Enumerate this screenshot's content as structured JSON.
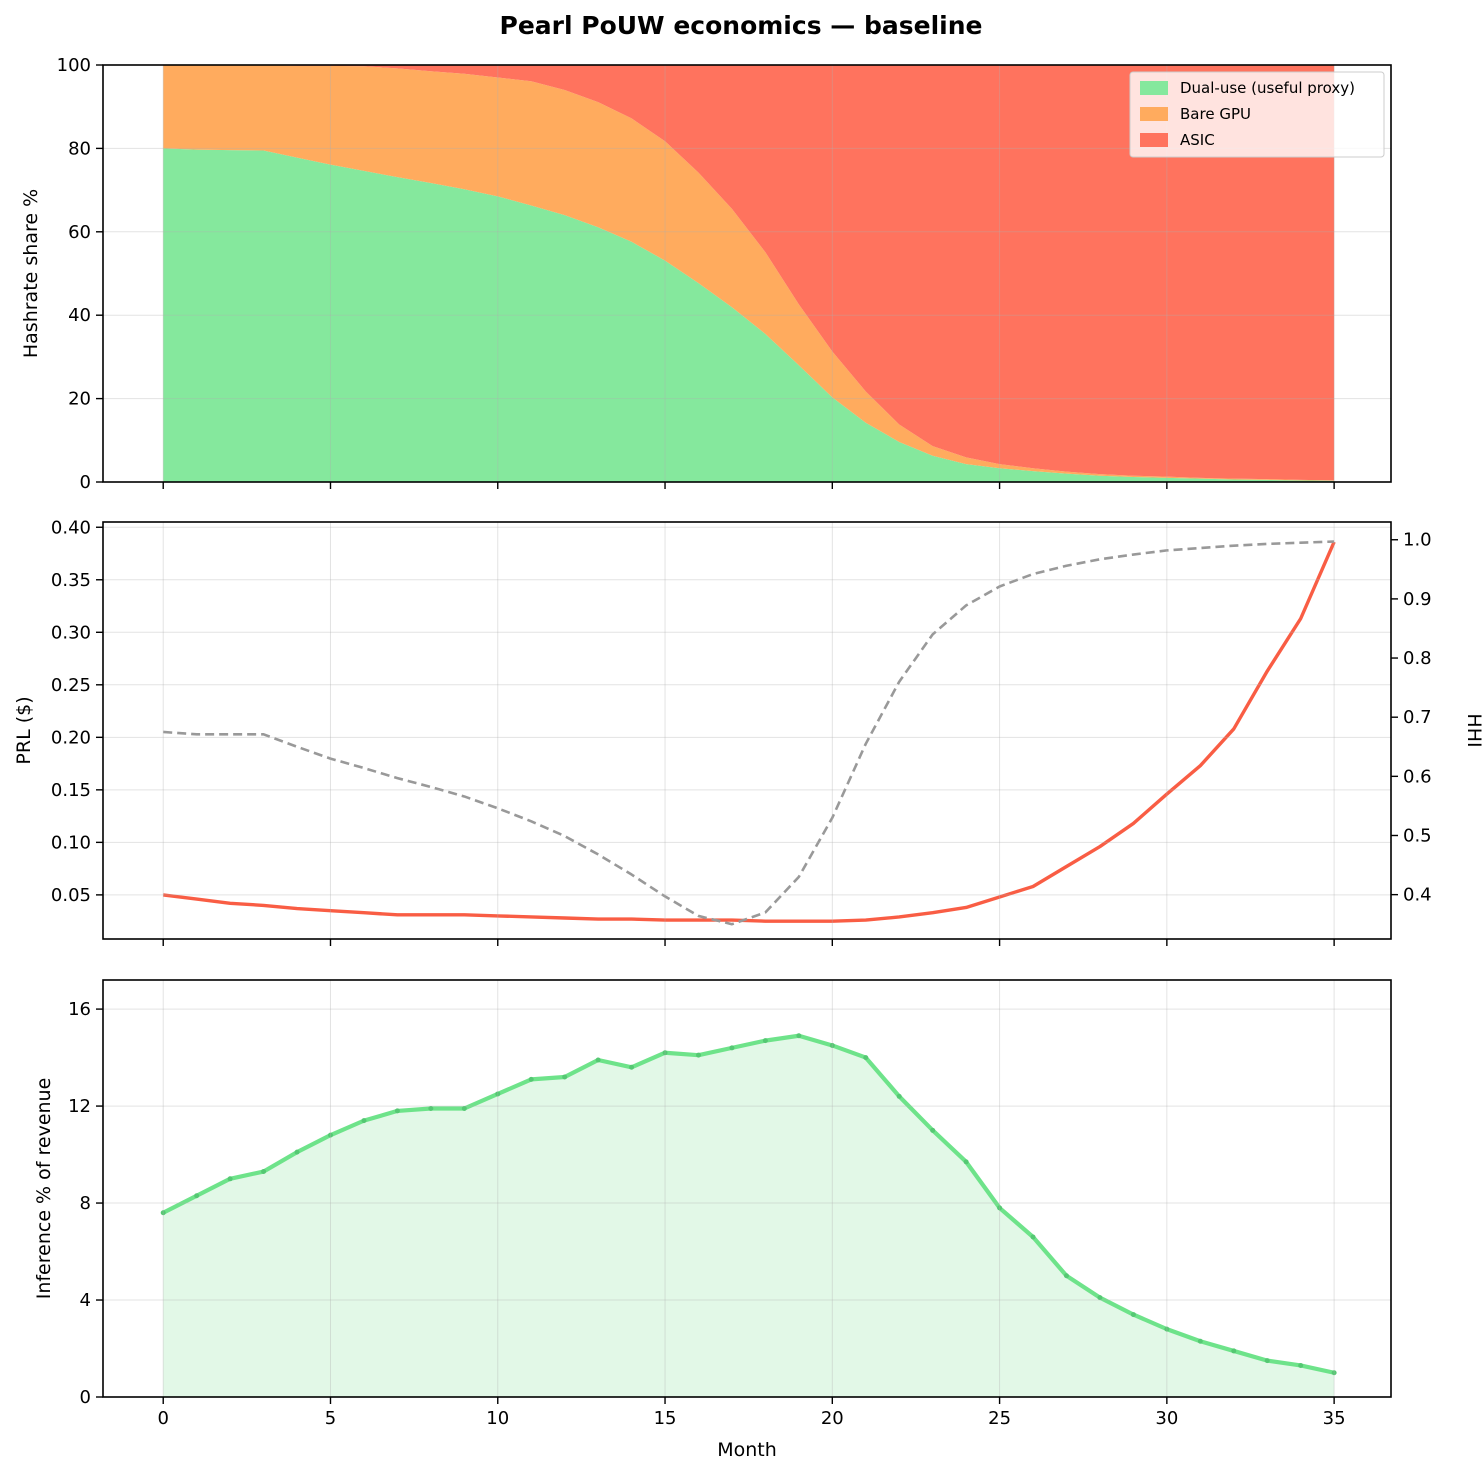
{
  "title": "Pearl PoUW economics — baseline",
  "chart_data": [
    {
      "type": "area",
      "stacked": true,
      "ylabel": "Hashrate share %",
      "xlim": [
        -1.8,
        36.7
      ],
      "ylim": [
        0,
        100
      ],
      "yticks": [
        0,
        20,
        40,
        60,
        80,
        100
      ],
      "xticks": [
        0,
        5,
        10,
        15,
        20,
        25,
        30,
        35
      ],
      "grid": true,
      "legend_position": "top-right",
      "x": [
        0,
        1,
        2,
        3,
        4,
        5,
        6,
        7,
        8,
        9,
        10,
        11,
        12,
        13,
        14,
        15,
        16,
        17,
        18,
        19,
        20,
        21,
        22,
        23,
        24,
        25,
        26,
        27,
        28,
        29,
        30,
        31,
        32,
        33,
        34,
        35
      ],
      "series": [
        {
          "name": "Dual-use (useful proxy)",
          "color": "#85e89d",
          "values": [
            80,
            79.7,
            79.6,
            79.5,
            77.8,
            76.1,
            74.6,
            73.1,
            71.7,
            70.2,
            68.5,
            66.3,
            64.0,
            61.1,
            57.6,
            53.1,
            47.7,
            41.9,
            35.5,
            28.0,
            20.3,
            14.2,
            9.6,
            6.3,
            4.3,
            3.3,
            2.6,
            2.0,
            1.5,
            1.2,
            1.0,
            0.8,
            0.6,
            0.5,
            0.4,
            0.3
          ]
        },
        {
          "name": "Bare GPU",
          "color": "#ffab5e",
          "values": [
            20,
            20.3,
            20.4,
            20.5,
            22.0,
            23.7,
            25.1,
            26.1,
            26.8,
            27.7,
            28.5,
            29.8,
            30.0,
            30.0,
            29.6,
            28.6,
            26.5,
            23.6,
            19.6,
            14.6,
            11.0,
            7.5,
            4.2,
            2.3,
            1.6,
            1.0,
            0.7,
            0.5,
            0.4,
            0.3,
            0.3,
            0.2,
            0.2,
            0.2,
            0.1,
            0.1
          ]
        },
        {
          "name": "ASIC",
          "color": "#ff735e",
          "values": [
            0,
            0,
            0,
            0,
            0.2,
            0.2,
            0.3,
            0.8,
            1.5,
            2.1,
            3.0,
            3.9,
            6.0,
            8.9,
            12.8,
            18.3,
            25.8,
            34.5,
            44.9,
            57.4,
            68.7,
            78.3,
            86.2,
            91.4,
            94.1,
            95.7,
            96.7,
            97.5,
            98.1,
            98.5,
            98.7,
            99.0,
            99.2,
            99.3,
            99.5,
            99.6
          ]
        }
      ]
    },
    {
      "type": "line",
      "ylabel": "PRL ($)",
      "y2label": "HHI",
      "xlim": [
        -1.8,
        36.7
      ],
      "ylim": [
        0.008,
        0.405
      ],
      "y2lim": [
        0.325,
        1.03
      ],
      "yticks": [
        0.05,
        0.1,
        0.15,
        0.2,
        0.25,
        0.3,
        0.35,
        0.4
      ],
      "ytick_labels": [
        "0.05",
        "0.10",
        "0.15",
        "0.20",
        "0.25",
        "0.30",
        "0.35",
        "0.40"
      ],
      "y2ticks": [
        0.4,
        0.5,
        0.6,
        0.7,
        0.8,
        0.9,
        1.0
      ],
      "y2tick_labels": [
        "0.4",
        "0.5",
        "0.6",
        "0.7",
        "0.8",
        "0.9",
        "1.0"
      ],
      "xticks": [
        0,
        5,
        10,
        15,
        20,
        25,
        30,
        35
      ],
      "grid": true,
      "x": [
        0,
        1,
        2,
        3,
        4,
        5,
        6,
        7,
        8,
        9,
        10,
        11,
        12,
        13,
        14,
        15,
        16,
        17,
        18,
        19,
        20,
        21,
        22,
        23,
        24,
        25,
        26,
        27,
        28,
        29,
        30,
        31,
        32,
        33,
        34,
        35
      ],
      "series": [
        {
          "axis": "left",
          "color": "#f95d44",
          "style": "solid",
          "values": [
            0.05,
            0.046,
            0.042,
            0.04,
            0.037,
            0.035,
            0.033,
            0.031,
            0.031,
            0.031,
            0.03,
            0.029,
            0.028,
            0.027,
            0.027,
            0.026,
            0.026,
            0.026,
            0.025,
            0.025,
            0.025,
            0.026,
            0.029,
            0.033,
            0.038,
            0.048,
            0.058,
            0.077,
            0.096,
            0.118,
            0.146,
            0.173,
            0.208,
            0.263,
            0.313,
            0.386
          ]
        },
        {
          "axis": "right",
          "color": "#999999",
          "style": "dashed",
          "values": [
            0.675,
            0.671,
            0.671,
            0.671,
            0.65,
            0.63,
            0.614,
            0.597,
            0.582,
            0.566,
            0.546,
            0.524,
            0.499,
            0.468,
            0.434,
            0.397,
            0.364,
            0.35,
            0.37,
            0.43,
            0.53,
            0.655,
            0.76,
            0.84,
            0.889,
            0.921,
            0.942,
            0.956,
            0.967,
            0.975,
            0.982,
            0.986,
            0.99,
            0.993,
            0.995,
            0.997
          ]
        }
      ]
    },
    {
      "type": "area",
      "ylabel": "Inference % of revenue",
      "xlabel": "Month",
      "xlim": [
        -1.8,
        36.7
      ],
      "ylim": [
        0,
        17.2
      ],
      "yticks": [
        0,
        4,
        8,
        12,
        16
      ],
      "xticks": [
        0,
        5,
        10,
        15,
        20,
        25,
        30,
        35
      ],
      "grid": true,
      "x": [
        0,
        1,
        2,
        3,
        4,
        5,
        6,
        7,
        8,
        9,
        10,
        11,
        12,
        13,
        14,
        15,
        16,
        17,
        18,
        19,
        20,
        21,
        22,
        23,
        24,
        25,
        26,
        27,
        28,
        29,
        30,
        31,
        32,
        33,
        34,
        35
      ],
      "series": [
        {
          "color": "#6ee38a",
          "fill": "#e2f8e7",
          "values": [
            7.6,
            8.3,
            9.0,
            9.3,
            10.1,
            10.8,
            11.4,
            11.8,
            11.9,
            11.9,
            12.5,
            13.1,
            13.2,
            13.9,
            13.6,
            14.2,
            14.1,
            14.4,
            14.7,
            14.9,
            14.5,
            14.0,
            12.4,
            11.0,
            9.7,
            7.8,
            6.6,
            5.0,
            4.1,
            3.4,
            2.8,
            2.3,
            1.9,
            1.5,
            1.3,
            1.0
          ]
        }
      ]
    }
  ]
}
